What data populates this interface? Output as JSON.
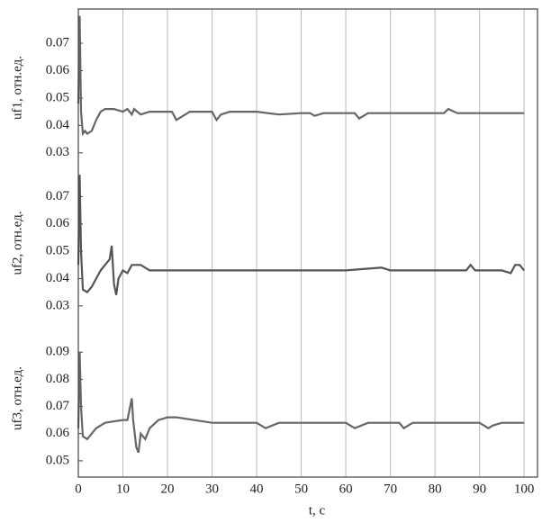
{
  "chart_data": [
    {
      "type": "line",
      "ylabel": "uf1, отн.ед.",
      "ylim": [
        0.025,
        0.0825
      ],
      "yticks": [
        0.03,
        0.04,
        0.05,
        0.06,
        0.07
      ],
      "xlim": [
        0,
        103
      ],
      "color": "#666666",
      "x": [
        0,
        0.3,
        0.6,
        1,
        1.5,
        2,
        3,
        4,
        5,
        6,
        8,
        10,
        11,
        12,
        12.5,
        14,
        16,
        20,
        21,
        22,
        23,
        25,
        30,
        31,
        32,
        34,
        40,
        45,
        50,
        52,
        53,
        55,
        60,
        62,
        63,
        65,
        70,
        80,
        82,
        83,
        85,
        87,
        90,
        100
      ],
      "values": [
        0.048,
        0.08,
        0.045,
        0.037,
        0.038,
        0.037,
        0.038,
        0.042,
        0.045,
        0.046,
        0.046,
        0.045,
        0.046,
        0.044,
        0.046,
        0.044,
        0.045,
        0.045,
        0.045,
        0.042,
        0.043,
        0.045,
        0.045,
        0.042,
        0.044,
        0.045,
        0.045,
        0.044,
        0.0445,
        0.0445,
        0.0435,
        0.0445,
        0.0445,
        0.0445,
        0.0425,
        0.0445,
        0.0445,
        0.0445,
        0.0445,
        0.046,
        0.0445,
        0.0445,
        0.0445,
        0.0445
      ]
    },
    {
      "type": "line",
      "ylabel": "uf2, отн.ед.",
      "ylim": [
        0.025,
        0.081
      ],
      "yticks": [
        0.03,
        0.04,
        0.05,
        0.06,
        0.07
      ],
      "xlim": [
        0,
        103
      ],
      "color": "#555555",
      "x": [
        0,
        0.3,
        0.6,
        1,
        2,
        3,
        4,
        5,
        6,
        7,
        7.5,
        8,
        8.5,
        9,
        10,
        11,
        12,
        14,
        16,
        18,
        20,
        30,
        40,
        50,
        60,
        68,
        70,
        80,
        87,
        88,
        89,
        90,
        95,
        97,
        98,
        99,
        100
      ],
      "values": [
        0.045,
        0.078,
        0.05,
        0.036,
        0.035,
        0.037,
        0.04,
        0.043,
        0.045,
        0.047,
        0.052,
        0.038,
        0.034,
        0.04,
        0.043,
        0.042,
        0.045,
        0.045,
        0.043,
        0.043,
        0.043,
        0.043,
        0.043,
        0.043,
        0.043,
        0.044,
        0.043,
        0.043,
        0.043,
        0.045,
        0.043,
        0.043,
        0.043,
        0.042,
        0.045,
        0.045,
        0.043
      ]
    },
    {
      "type": "line",
      "ylabel": "uf3, отн.ед.",
      "ylim": [
        0.044,
        0.102
      ],
      "yticks": [
        0.05,
        0.06,
        0.07,
        0.08,
        0.09
      ],
      "xlim": [
        0,
        103
      ],
      "color": "#666666",
      "x": [
        0,
        0.3,
        0.6,
        1,
        2,
        3,
        4,
        6,
        8,
        10,
        11,
        12,
        12.3,
        13,
        13.5,
        14,
        15,
        16,
        18,
        20,
        22,
        30,
        40,
        42,
        45,
        60,
        62,
        65,
        70,
        72,
        73,
        75,
        90,
        92,
        93,
        95,
        100
      ],
      "values": [
        0.062,
        0.09,
        0.07,
        0.059,
        0.058,
        0.06,
        0.062,
        0.064,
        0.0645,
        0.065,
        0.065,
        0.073,
        0.065,
        0.055,
        0.053,
        0.06,
        0.058,
        0.062,
        0.065,
        0.066,
        0.066,
        0.064,
        0.064,
        0.062,
        0.064,
        0.064,
        0.062,
        0.064,
        0.064,
        0.064,
        0.062,
        0.064,
        0.064,
        0.062,
        0.063,
        0.064,
        0.064
      ],
      "xticks": [
        0,
        10,
        20,
        30,
        40,
        50,
        60,
        70,
        80,
        90,
        100
      ],
      "xlabel": "t, c",
      "grid": true
    }
  ]
}
